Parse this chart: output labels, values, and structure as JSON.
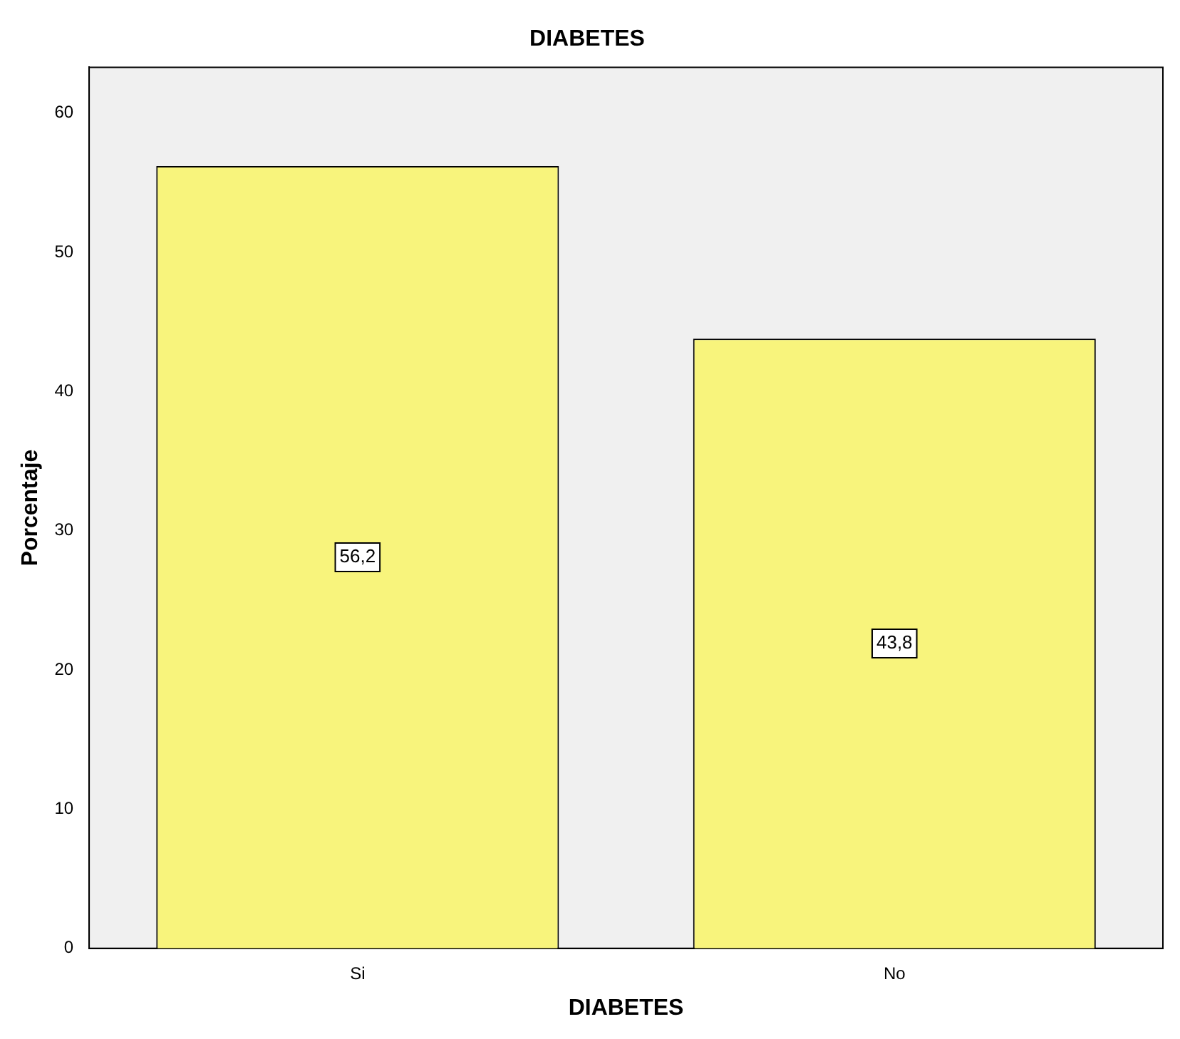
{
  "chart_data": {
    "type": "bar",
    "title": "DIABETES",
    "xlabel": "DIABETES",
    "ylabel": "Porcentaje",
    "categories": [
      "Si",
      "No"
    ],
    "values": [
      56.2,
      43.8
    ],
    "value_labels": [
      "56,2",
      "43,8"
    ],
    "color": "#f8f47c",
    "ylim": [
      0,
      63.3
    ],
    "yticks": [
      0,
      10,
      20,
      30,
      40,
      50,
      60
    ],
    "grid": false,
    "legend": false
  }
}
